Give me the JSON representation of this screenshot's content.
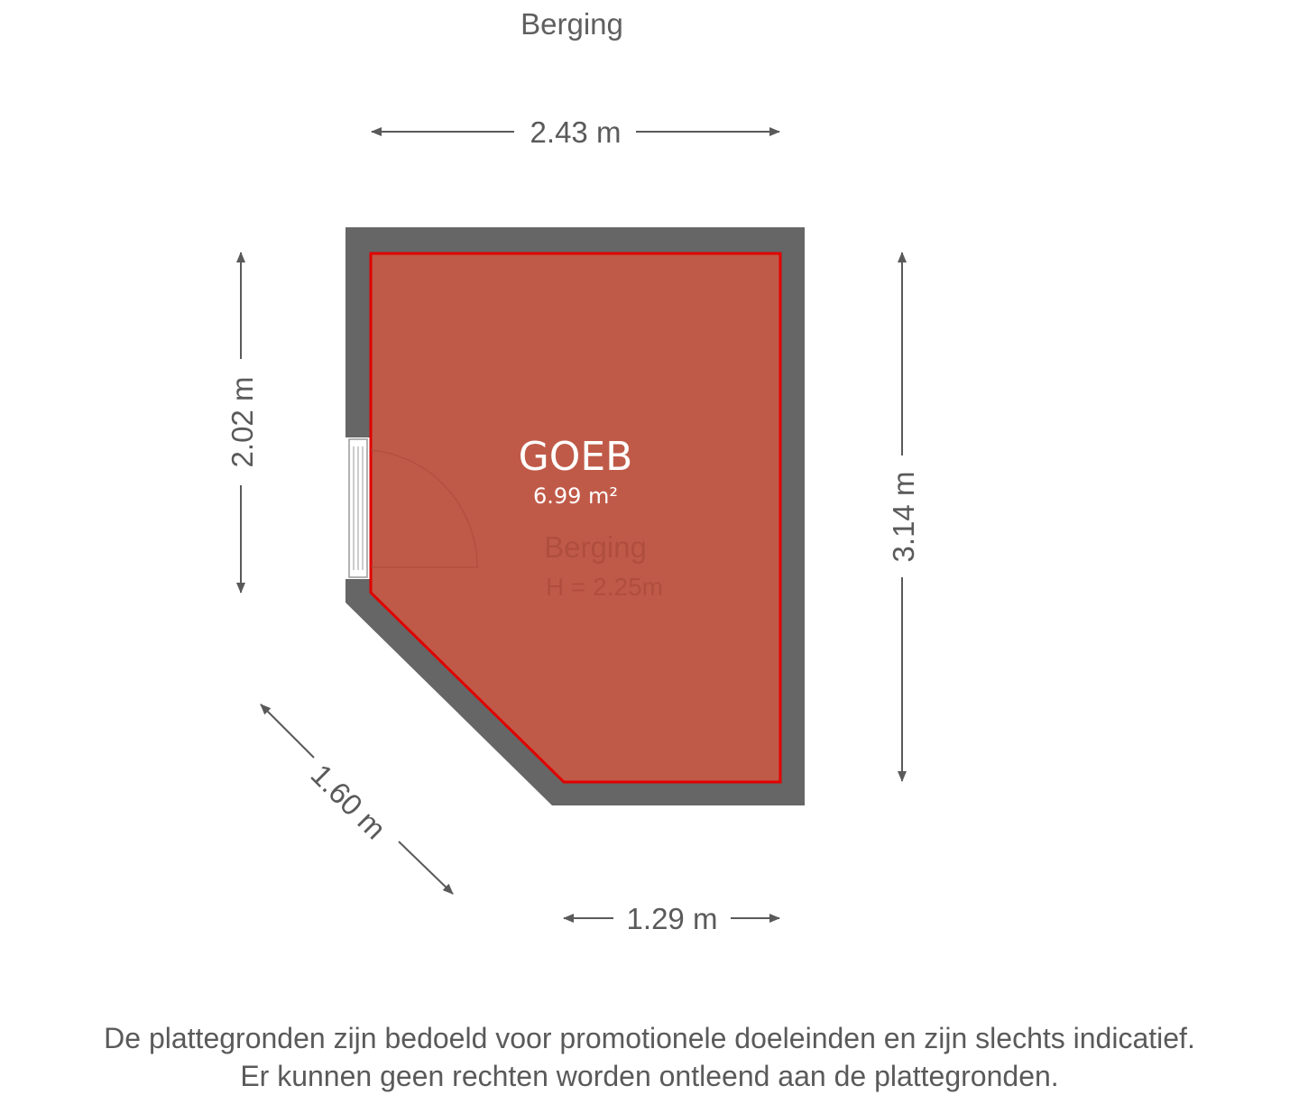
{
  "title": "Berging",
  "room": {
    "label": "GOEB",
    "area": "6.99 m²",
    "underlay_name": "Berging",
    "underlay_height": "H = 2.25m",
    "fill_color": "#c05a48",
    "outline_color": "#e00000",
    "wall_color": "#666666"
  },
  "dimensions": {
    "top": "2.43 m",
    "left": "2.02 m",
    "right": "3.14 m",
    "diagonal": "1.60 m",
    "bottom": "1.29 m"
  },
  "disclaimer": {
    "line1": "De plattegronden zijn bedoeld voor promotionele doeleinden en zijn slechts indicatief.",
    "line2": "Er kunnen geen rechten worden ontleend aan de plattegronden."
  }
}
